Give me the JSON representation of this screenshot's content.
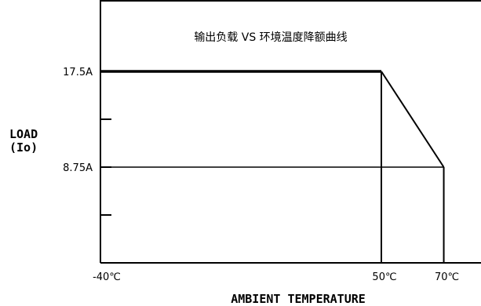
{
  "chart_data": {
    "type": "line",
    "title": "输出负载 VS 环境温度降额曲线",
    "xlabel": "AMBIENT TEMPERATURE",
    "ylabel_line1": "LOAD",
    "ylabel_line2": "(Io)",
    "xlim": [
      -40,
      80
    ],
    "ylim": [
      0,
      25
    ],
    "x_ticks": [
      {
        "value": -40,
        "label": "-40℃"
      },
      {
        "value": 50,
        "label": "50℃"
      },
      {
        "value": 70,
        "label": "70℃"
      }
    ],
    "y_ticks": [
      {
        "value": 17.5,
        "label": "17.5A"
      },
      {
        "value": 8.75,
        "label": "8.75A"
      }
    ],
    "y_minor_ticks": [
      13.125,
      4.375
    ],
    "series": [
      {
        "x": [
          -40,
          50,
          70
        ],
        "y": [
          17.5,
          17.5,
          8.75
        ]
      }
    ],
    "grid": false
  }
}
